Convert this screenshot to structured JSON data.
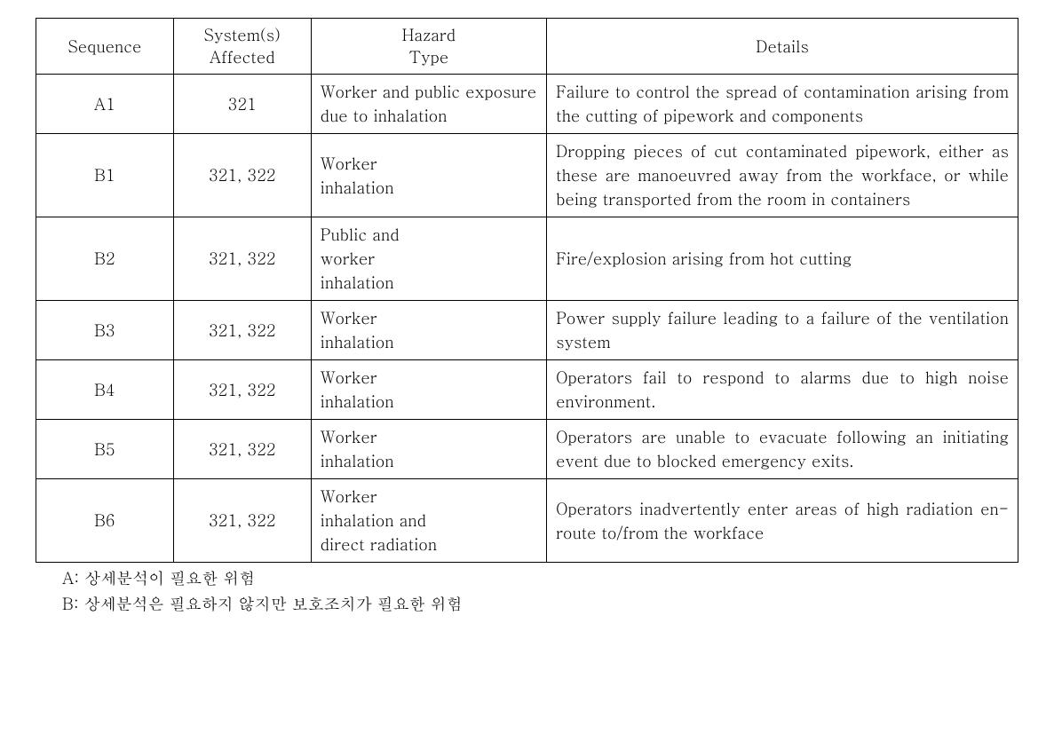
{
  "table": {
    "headers": {
      "sequence": "Sequence",
      "systems": "System(s)\nAffected",
      "hazard": "Hazard\nType",
      "details": "Details"
    },
    "rows": [
      {
        "sequence": "A1",
        "systems": "321",
        "hazard": "Worker and public exposure\ndue to inhalation",
        "details": "Failure to control the spread of contamination arising from the cutting of pipework and components"
      },
      {
        "sequence": "B1",
        "systems": "321, 322",
        "hazard": "Worker\ninhalation",
        "details": "Dropping pieces of cut contaminated pipework, either as these are manoeuvred away from the workface, or while being transported from the room in containers"
      },
      {
        "sequence": "B2",
        "systems": "321, 322",
        "hazard": "Public and\nworker\ninhalation",
        "details": "Fire/explosion arising from hot cutting"
      },
      {
        "sequence": "B3",
        "systems": "321, 322",
        "hazard": "Worker\ninhalation",
        "details": "Power supply failure leading to a failure of the ventilation system"
      },
      {
        "sequence": "B4",
        "systems": "321, 322",
        "hazard": "Worker\ninhalation",
        "details": "Operators fail to respond to alarms due to high noise environment."
      },
      {
        "sequence": "B5",
        "systems": "321, 322",
        "hazard": "Worker\ninhalation",
        "details": "Operators are unable to evacuate following an initiating event due to blocked emergency exits."
      },
      {
        "sequence": "B6",
        "systems": "321, 322",
        "hazard": "Worker\ninhalation and\ndirect radiation",
        "details": "Operators inadvertently enter areas of high radiation en-route to/from the workface"
      }
    ]
  },
  "footnotes": {
    "a": "A: 상세분석이 필요한 위험",
    "b": "B: 상세분석은 필요하지 않지만 보호조치가 필요한 위험"
  },
  "style": {
    "background_color": "#ffffff",
    "border_color": "#000000",
    "text_color": "#000000",
    "font_size_pt": 14,
    "col_widths_pct": [
      14,
      14,
      24,
      48
    ],
    "header_align": "center",
    "seq_align": "center",
    "sys_align": "center",
    "haz_align": "left",
    "det_align": "justify"
  }
}
